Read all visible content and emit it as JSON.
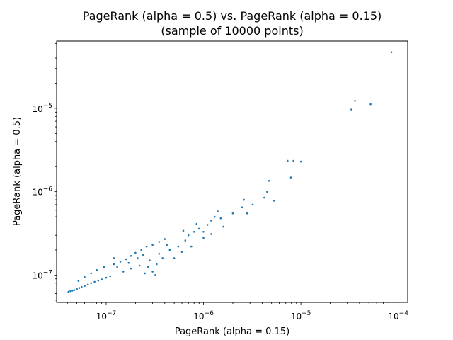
{
  "chart_data": {
    "type": "scatter",
    "title": "PageRank (alpha = 0.5) vs. PageRank (alpha = 0.15)",
    "subtitle": "(sample of 10000 points)",
    "xlabel": "PageRank (alpha = 0.15)",
    "ylabel": "PageRank (alpha = 0.5)",
    "xscale": "log",
    "yscale": "log",
    "xlim": [
      3.1e-08,
      0.000125
    ],
    "ylim": [
      4.7e-08,
      6.4e-05
    ],
    "x_ticks": [
      {
        "value": 1e-07,
        "base": "10",
        "exp": "−7"
      },
      {
        "value": 1e-06,
        "base": "10",
        "exp": "−6"
      },
      {
        "value": 1e-05,
        "base": "10",
        "exp": "−5"
      },
      {
        "value": 0.0001,
        "base": "10",
        "exp": "−4"
      }
    ],
    "y_ticks": [
      {
        "value": 1e-07,
        "base": "10",
        "exp": "−7"
      },
      {
        "value": 1e-06,
        "base": "10",
        "exp": "−6"
      },
      {
        "value": 1e-05,
        "base": "10",
        "exp": "−5"
      }
    ],
    "grid": false,
    "marker_color": "#1f77b4",
    "points": [
      [
        4.1e-08,
        6.3e-08
      ],
      [
        4.3e-08,
        6.4e-08
      ],
      [
        4.5e-08,
        6.5e-08
      ],
      [
        4.7e-08,
        6.6e-08
      ],
      [
        5e-08,
        6.8e-08
      ],
      [
        5.3e-08,
        7e-08
      ],
      [
        5.6e-08,
        7.2e-08
      ],
      [
        6e-08,
        7.4e-08
      ],
      [
        6.5e-08,
        7.7e-08
      ],
      [
        7e-08,
        8e-08
      ],
      [
        7.6e-08,
        8.3e-08
      ],
      [
        8.3e-08,
        8.6e-08
      ],
      [
        9e-08,
        8.9e-08
      ],
      [
        1e-07,
        9.3e-08
      ],
      [
        1.1e-07,
        9.7e-08
      ],
      [
        5.2e-08,
        8.5e-08
      ],
      [
        6e-08,
        9.5e-08
      ],
      [
        7e-08,
        1.05e-07
      ],
      [
        8e-08,
        1.15e-07
      ],
      [
        9.5e-08,
        1.25e-07
      ],
      [
        1.2e-07,
        1.35e-07
      ],
      [
        1.4e-07,
        1.45e-07
      ],
      [
        1.6e-07,
        1.55e-07
      ],
      [
        1.8e-07,
        1.7e-07
      ],
      [
        2e-07,
        1.85e-07
      ],
      [
        2.3e-07,
        2e-07
      ],
      [
        2.6e-07,
        2.2e-07
      ],
      [
        3e-07,
        2.3e-07
      ],
      [
        3.5e-07,
        2.5e-07
      ],
      [
        4e-07,
        2.7e-07
      ],
      [
        1.5e-07,
        1.1e-07
      ],
      [
        1.8e-07,
        1.2e-07
      ],
      [
        2.2e-07,
        1.3e-07
      ],
      [
        2.5e-07,
        1.05e-07
      ],
      [
        3e-07,
        1.1e-07
      ],
      [
        3.2e-07,
        1e-07
      ],
      [
        2.8e-07,
        1.5e-07
      ],
      [
        3.5e-07,
        1.8e-07
      ],
      [
        4.5e-07,
        2e-07
      ],
      [
        5e-07,
        1.6e-07
      ],
      [
        5.5e-07,
        2.2e-07
      ],
      [
        6.5e-07,
        2.6e-07
      ],
      [
        7e-07,
        3e-07
      ],
      [
        8e-07,
        3.3e-07
      ],
      [
        9e-07,
        3.6e-07
      ],
      [
        1e-06,
        3.3e-07
      ],
      [
        1.1e-06,
        4e-07
      ],
      [
        1.2e-06,
        4.5e-07
      ],
      [
        1.3e-06,
        5e-07
      ],
      [
        1e-06,
        2.8e-07
      ],
      [
        1.5e-06,
        4.8e-07
      ],
      [
        1.6e-06,
        3.8e-07
      ],
      [
        2e-06,
        5.5e-07
      ],
      [
        2.5e-06,
        6.5e-07
      ],
      [
        2.6e-06,
        8e-07
      ],
      [
        2.8e-06,
        5.5e-07
      ],
      [
        3.2e-06,
        7e-07
      ],
      [
        4.2e-06,
        8.5e-07
      ],
      [
        4.5e-06,
        1e-06
      ],
      [
        4.7e-06,
        1.35e-06
      ],
      [
        5.3e-06,
        7.8e-07
      ],
      [
        7.3e-06,
        2.35e-06
      ],
      [
        7.9e-06,
        1.48e-06
      ],
      [
        8.4e-06,
        2.35e-06
      ],
      [
        1e-05,
        2.3e-06
      ],
      [
        3.3e-05,
        9.7e-06
      ],
      [
        3.6e-05,
        1.23e-05
      ],
      [
        5.2e-05,
        1.12e-05
      ],
      [
        8.5e-05,
        4.7e-05
      ],
      [
        1.2e-07,
        1.6e-07
      ],
      [
        1.3e-07,
        1.25e-07
      ],
      [
        1.7e-07,
        1.4e-07
      ],
      [
        2.1e-07,
        1.6e-07
      ],
      [
        2.4e-07,
        1.75e-07
      ],
      [
        2.7e-07,
        1.25e-07
      ],
      [
        3.3e-07,
        1.35e-07
      ],
      [
        3.8e-07,
        1.6e-07
      ],
      [
        4.2e-07,
        2.3e-07
      ],
      [
        6e-07,
        1.9e-07
      ],
      [
        6.2e-07,
        3.4e-07
      ],
      [
        7.5e-07,
        2.2e-07
      ],
      [
        8.5e-07,
        4.1e-07
      ],
      [
        1.2e-06,
        3.1e-07
      ],
      [
        1.4e-06,
        5.8e-07
      ]
    ]
  }
}
